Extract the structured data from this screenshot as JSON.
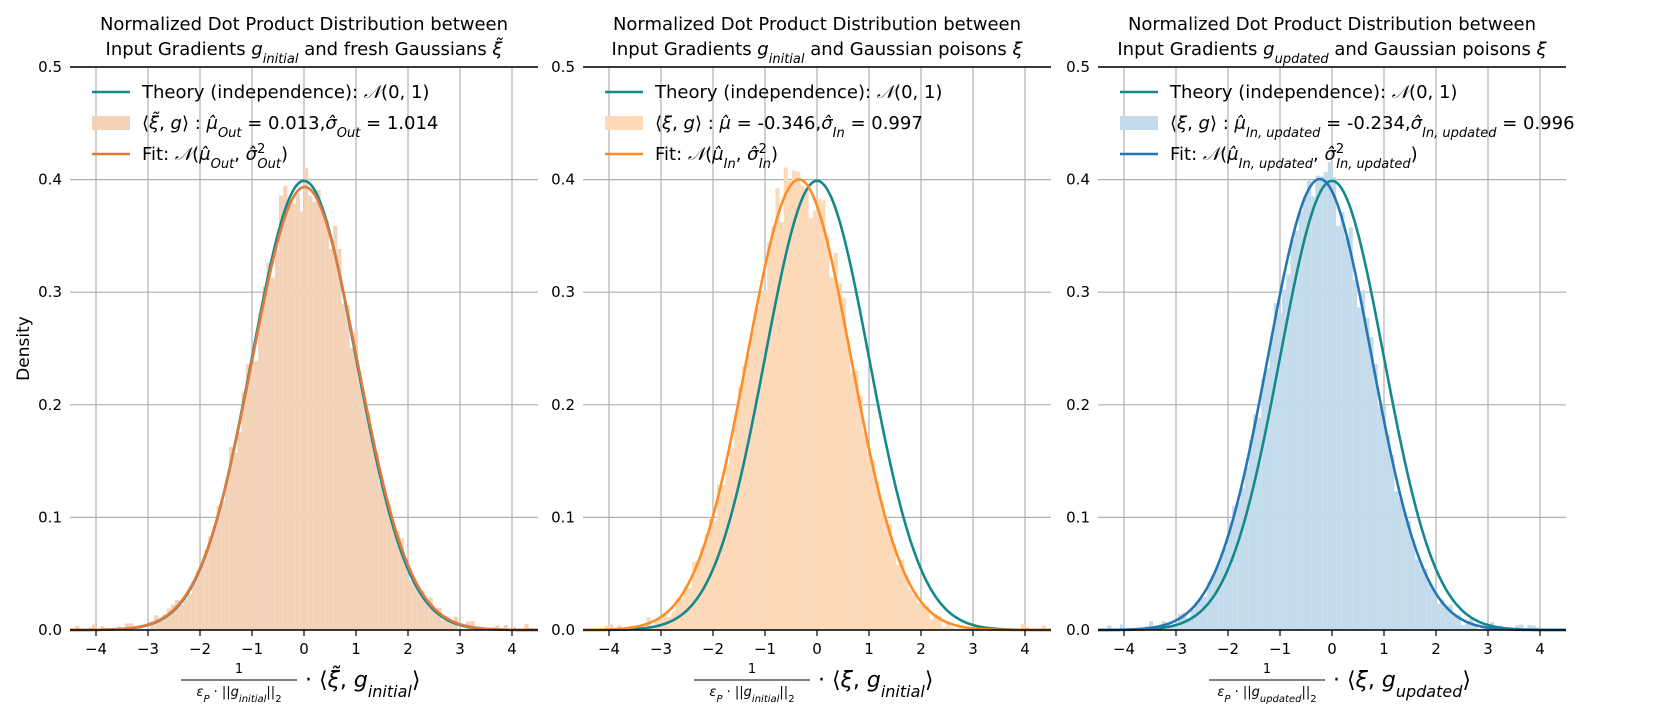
{
  "chart_data": [
    {
      "type": "bar",
      "title_lines": [
        "Normalized Dot Product Distribution between",
        "Input Gradients g_initial and fresh Gaussians ξ̃"
      ],
      "xlabel_math": {
        "num": "1",
        "den": "εP · ||g_initial||2",
        "rest": "· ⟨ξ̃, g_initial⟩"
      },
      "ylabel": "Density",
      "xlim": [
        -4.5,
        4.5
      ],
      "ylim": [
        0,
        0.5
      ],
      "xticks": [
        -4,
        -3,
        -2,
        -1,
        0,
        1,
        2,
        3,
        4
      ],
      "xtick_labels": [
        "−4",
        "−3",
        "−2",
        "−1",
        "0",
        "1",
        "2",
        "3",
        "4"
      ],
      "yticks": [
        0.0,
        0.1,
        0.2,
        0.3,
        0.4,
        0.5
      ],
      "ytick_labels": [
        "0.0",
        "0.1",
        "0.2",
        "0.3",
        "0.4",
        "0.5"
      ],
      "grid": true,
      "legend_position": "upper-left",
      "hist": {
        "mu": 0.013,
        "sigma": 1.014,
        "color": "#f4d2b8"
      },
      "series": [
        {
          "kind": "theory",
          "mu": 0,
          "sigma": 1,
          "color": "#13898b"
        },
        {
          "kind": "fit",
          "mu": 0.013,
          "sigma": 1.014,
          "color": "#e07a3c"
        }
      ],
      "legend": [
        {
          "text": "Theory (independence): 𝒩(0, 1)",
          "color": "#13898b",
          "kind": "line"
        },
        {
          "text": "⟨ξ̃, g⟩ : μ̂Out = 0.013,σ̂Out = 1.014",
          "color": "#f4d2b8",
          "kind": "patch"
        },
        {
          "text": "Fit: 𝒩(μ̂Out, σ̂²Out)",
          "color": "#e07a3c",
          "kind": "line"
        }
      ]
    },
    {
      "type": "bar",
      "title_lines": [
        "Normalized Dot Product Distribution between",
        "Input Gradients g_initial and Gaussian poisons ξ"
      ],
      "xlabel_math": {
        "num": "1",
        "den": "εP · ||g_initial||2",
        "rest": "· ⟨ξ, g_initial⟩"
      },
      "ylabel": "",
      "xlim": [
        -4.5,
        4.5
      ],
      "ylim": [
        0,
        0.5
      ],
      "xticks": [
        -4,
        -3,
        -2,
        -1,
        0,
        1,
        2,
        3,
        4
      ],
      "xtick_labels": [
        "−4",
        "−3",
        "−2",
        "−1",
        "0",
        "1",
        "2",
        "3",
        "4"
      ],
      "yticks": [
        0.0,
        0.1,
        0.2,
        0.3,
        0.4,
        0.5
      ],
      "ytick_labels": [
        "0.0",
        "0.1",
        "0.2",
        "0.3",
        "0.4",
        "0.5"
      ],
      "grid": true,
      "legend_position": "upper-left",
      "hist": {
        "mu": -0.346,
        "sigma": 0.997,
        "color": "#fdd9b8"
      },
      "series": [
        {
          "kind": "theory",
          "mu": 0,
          "sigma": 1,
          "color": "#13898b"
        },
        {
          "kind": "fit",
          "mu": -0.346,
          "sigma": 0.997,
          "color": "#ff8c25"
        }
      ],
      "legend": [
        {
          "text": "Theory (independence): 𝒩(0, 1)",
          "color": "#13898b",
          "kind": "line"
        },
        {
          "text": "⟨ξ, g⟩ : μ̂ = -0.346,σ̂In = 0.997",
          "color": "#fdd9b8",
          "kind": "patch"
        },
        {
          "text": "Fit: 𝒩(μ̂In, σ̂²In)",
          "color": "#ff8c25",
          "kind": "line"
        }
      ]
    },
    {
      "type": "bar",
      "title_lines": [
        "Normalized Dot Product Distribution between",
        "Input Gradients g_updated and Gaussian poisons ξ"
      ],
      "xlabel_math": {
        "num": "1",
        "den": "εP · ||g_updated||2",
        "rest": "· ⟨ξ, g_updated⟩"
      },
      "ylabel": "",
      "xlim": [
        -4.5,
        4.5
      ],
      "ylim": [
        0,
        0.5
      ],
      "xticks": [
        -4,
        -3,
        -2,
        -1,
        0,
        1,
        2,
        3,
        4
      ],
      "xtick_labels": [
        "−4",
        "−3",
        "−2",
        "−1",
        "0",
        "1",
        "2",
        "3",
        "4"
      ],
      "yticks": [
        0.0,
        0.1,
        0.2,
        0.3,
        0.4,
        0.5
      ],
      "ytick_labels": [
        "0.0",
        "0.1",
        "0.2",
        "0.3",
        "0.4",
        "0.5"
      ],
      "grid": true,
      "legend_position": "upper-left",
      "hist": {
        "mu": -0.234,
        "sigma": 0.996,
        "color": "#c4dbec"
      },
      "series": [
        {
          "kind": "theory",
          "mu": 0,
          "sigma": 1,
          "color": "#13898b"
        },
        {
          "kind": "fit",
          "mu": -0.234,
          "sigma": 0.996,
          "color": "#2576b4"
        }
      ],
      "legend": [
        {
          "text": "Theory (independence): 𝒩(0, 1)",
          "color": "#13898b",
          "kind": "line"
        },
        {
          "text": "⟨ξ, g⟩ : μ̂In, updated = -0.234,σ̂In, updated = 0.996",
          "color": "#c4dbec",
          "kind": "patch"
        },
        {
          "text": "Fit: 𝒩(μ̂In, updated, σ̂²In, updated)",
          "color": "#2576b4",
          "kind": "line"
        }
      ]
    }
  ]
}
